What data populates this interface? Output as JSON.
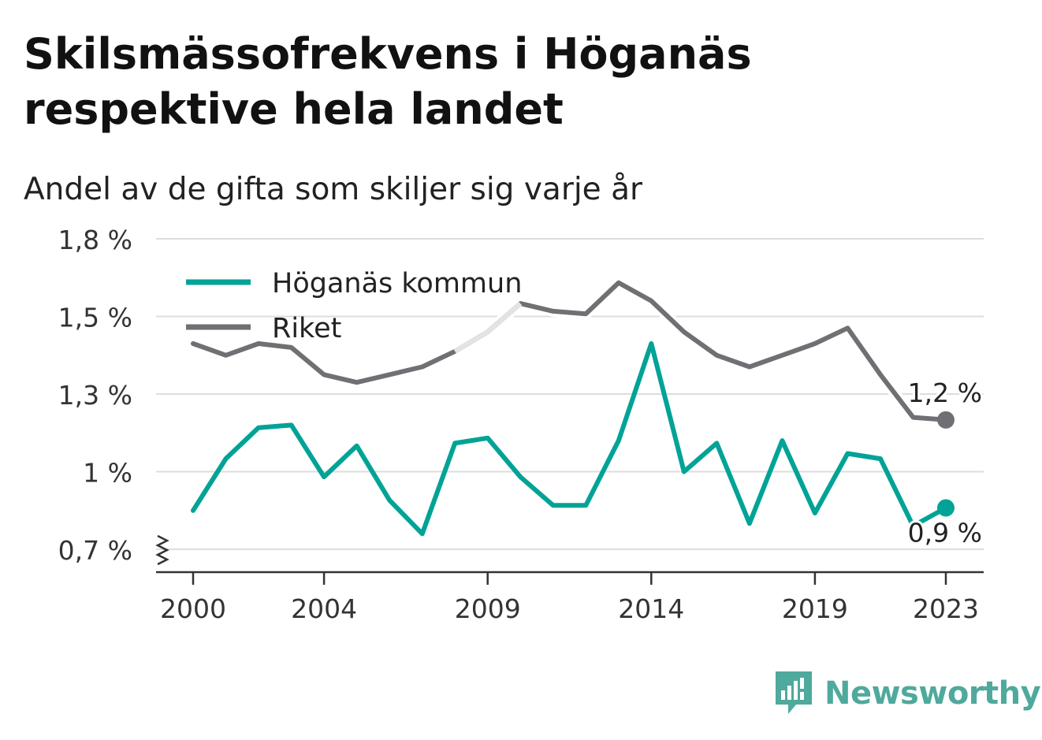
{
  "title": "Skilsmässofrekvens i Höganäs respektive hela landet",
  "subtitle": "Andel av de gifta som skiljer sig varje år",
  "brand": "Newsworthy",
  "colors": {
    "hoganas": "#00a396",
    "riket": "#707074",
    "riket_highlight": "#e3e3e3",
    "grid": "#dddddd",
    "axis": "#333333",
    "brand": "#4fa99c"
  },
  "chart_data": {
    "type": "line",
    "x": [
      2000,
      2001,
      2002,
      2003,
      2004,
      2005,
      2006,
      2007,
      2008,
      2009,
      2010,
      2011,
      2012,
      2013,
      2014,
      2015,
      2016,
      2017,
      2018,
      2019,
      2020,
      2021,
      2022,
      2023
    ],
    "xticks": [
      {
        "value": 2000,
        "label": "2000"
      },
      {
        "value": 2004,
        "label": "2004"
      },
      {
        "value": 2009,
        "label": "2009"
      },
      {
        "value": 2014,
        "label": "2014"
      },
      {
        "value": 2019,
        "label": "2019"
      },
      {
        "value": 2023,
        "label": "2023"
      }
    ],
    "yticks": [
      {
        "value": 0.7,
        "label": "0,7 %"
      },
      {
        "value": 1.0,
        "label": "1 %"
      },
      {
        "value": 1.3,
        "label": "1,3 %"
      },
      {
        "value": 1.5,
        "label": "1,5 %"
      },
      {
        "value": 1.8,
        "label": "1,8 %"
      }
    ],
    "ylim": [
      0.7,
      1.8
    ],
    "y_axis_broken": true,
    "grid": true,
    "legend_position": "top-left",
    "series": [
      {
        "name": "Höganäs kommun",
        "color": "#00a396",
        "values": [
          0.85,
          1.05,
          1.17,
          1.18,
          0.98,
          1.1,
          0.89,
          0.76,
          1.11,
          1.13,
          0.98,
          0.87,
          0.87,
          1.12,
          1.43,
          1.0,
          1.11,
          0.8,
          1.12,
          0.84,
          1.07,
          1.05,
          0.79,
          0.86
        ],
        "end_label": "0,9 %"
      },
      {
        "name": "Riket",
        "color": "#707074",
        "values": [
          1.43,
          1.4,
          1.43,
          1.42,
          1.35,
          1.33,
          1.35,
          1.37,
          1.41,
          1.46,
          1.55,
          1.52,
          1.51,
          1.63,
          1.56,
          1.46,
          1.4,
          1.37,
          1.4,
          1.43,
          1.47,
          1.35,
          1.21,
          1.2
        ],
        "end_label": "1,2 %"
      }
    ]
  }
}
